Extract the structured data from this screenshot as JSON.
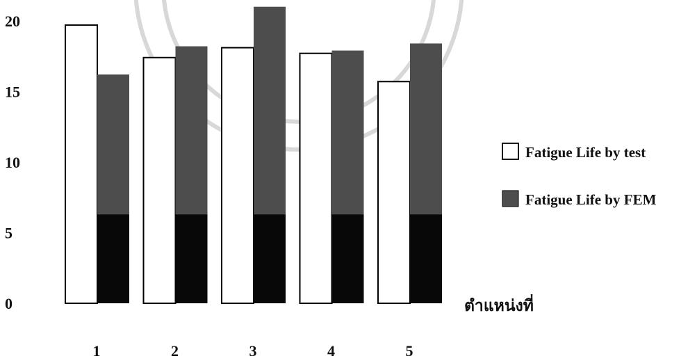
{
  "chart_data": {
    "type": "bar",
    "categories": [
      "1",
      "2",
      "3",
      "4",
      "5"
    ],
    "series": [
      {
        "name": "Fatigue Life by test",
        "values": [
          19.7,
          17.4,
          18.1,
          17.7,
          15.7
        ]
      },
      {
        "name": "Fatigue Life by FEM",
        "values": [
          16.2,
          18.2,
          21.0,
          17.9,
          18.4
        ]
      }
    ],
    "y_ticks": [
      "0",
      "5",
      "10",
      "15",
      "20"
    ],
    "ylim": [
      0,
      21
    ],
    "xlabel": "ตำแหน่งที่",
    "ylabel": "",
    "title": "",
    "legend_position": "right",
    "colors": {
      "test": "#ffffff",
      "fem_upper": "#4d4d4d",
      "fem_lower": "#080808",
      "outline": "#000000"
    },
    "fem_dark_split_value": 6.3
  }
}
